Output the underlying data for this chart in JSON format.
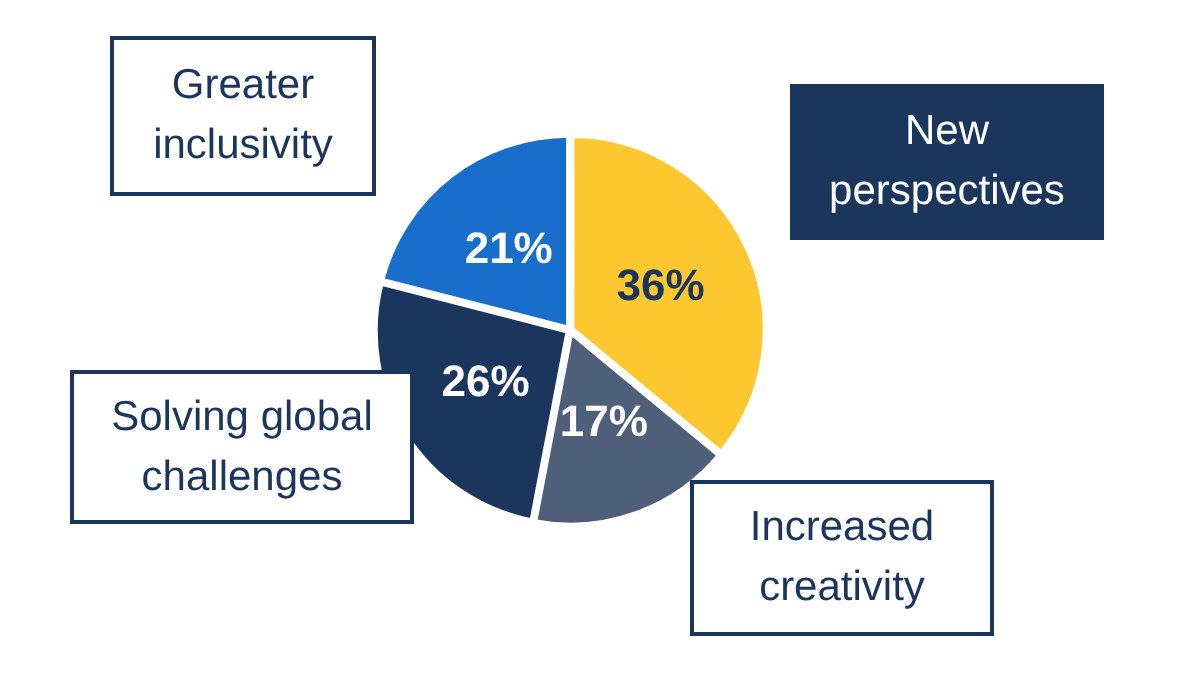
{
  "chart_data": {
    "type": "pie",
    "categories": [
      "New perspectives",
      "Increased creativity",
      "Solving global challenges",
      "Greater inclusivity"
    ],
    "values": [
      36,
      17,
      26,
      21
    ],
    "colors": [
      "#fdc82f",
      "#4e6079",
      "#1b365d",
      "#1a6ecb"
    ],
    "value_labels": [
      "36%",
      "17%",
      "26%",
      "21%"
    ],
    "legend": false
  }
}
